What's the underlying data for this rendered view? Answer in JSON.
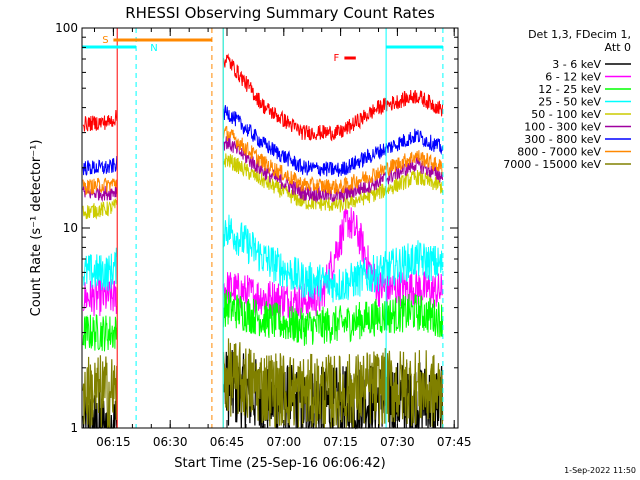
{
  "chart_data": {
    "type": "line",
    "title": "RHESSI Observing Summary Count Rates",
    "xlabel": "Start Time (25-Sep-16 06:06:42)",
    "ylabel": "Count Rate (s⁻¹ detector⁻¹)",
    "yscale": "log",
    "ylim": [
      1,
      100
    ],
    "xlim": [
      "06:06:42",
      "07:46:00"
    ],
    "x_ticks": [
      "06:15",
      "06:30",
      "06:45",
      "07:00",
      "07:15",
      "07:30",
      "07:45"
    ],
    "y_ticks": [
      "1",
      "10",
      "100"
    ],
    "grid": false,
    "legend_position": "right",
    "legend_header": [
      "Det 1,3, FDecim 1,",
      "Att 0"
    ],
    "timestamp": "1-Sep-2022 11:50",
    "data_gap": {
      "from": "06:16",
      "to": "06:44"
    },
    "flags": [
      {
        "label": "S",
        "color": "#ff8800",
        "from": "06:15",
        "to": "06:41"
      },
      {
        "label": "N",
        "color": "#00ffff",
        "from": "06:06:42",
        "to": "06:21"
      },
      {
        "label": "",
        "color": "#00ffff",
        "from": "07:27",
        "to": "07:42"
      },
      {
        "label": "F",
        "color": "#ff0000",
        "from": "07:16",
        "to": "07:19"
      }
    ],
    "night_lines": [
      "06:21",
      "06:41",
      "07:42"
    ],
    "day_lines": [
      "06:44",
      "07:27"
    ],
    "series": [
      {
        "name": "3 - 6 keV",
        "color": "#000000",
        "x": [
          "06:07",
          "06:14",
          "06:16",
          "06:45",
          "06:55",
          "07:05",
          "07:15",
          "07:25",
          "07:35",
          "07:42"
        ],
        "values": [
          1.0,
          1.0,
          1.0,
          1.6,
          1.4,
          1.3,
          1.3,
          1.4,
          1.4,
          1.3
        ]
      },
      {
        "name": "6 - 12 keV",
        "color": "#ff00ff",
        "x": [
          "06:07",
          "06:14",
          "06:16",
          "06:45",
          "06:55",
          "07:05",
          "07:10",
          "07:14",
          "07:17",
          "07:20",
          "07:23",
          "07:25",
          "07:35",
          "07:42"
        ],
        "values": [
          4.5,
          4.5,
          4.5,
          5.0,
          4.5,
          4.3,
          4.5,
          8.0,
          11.0,
          9.0,
          6.0,
          5.0,
          5.0,
          4.8
        ]
      },
      {
        "name": "12 - 25 keV",
        "color": "#00ff00",
        "x": [
          "06:07",
          "06:14",
          "06:16",
          "06:45",
          "06:55",
          "07:05",
          "07:15",
          "07:25",
          "07:35",
          "07:42"
        ],
        "values": [
          3.0,
          3.0,
          3.0,
          4.0,
          3.5,
          3.2,
          3.3,
          3.6,
          3.8,
          3.5
        ]
      },
      {
        "name": "25 - 50 keV",
        "color": "#00ffff",
        "x": [
          "06:07",
          "06:14",
          "06:16",
          "06:45",
          "06:55",
          "07:05",
          "07:15",
          "07:25",
          "07:35",
          "07:42"
        ],
        "values": [
          6.0,
          6.0,
          6.5,
          10.0,
          7.0,
          5.5,
          5.2,
          6.0,
          7.0,
          6.5
        ]
      },
      {
        "name": "50 - 100 keV",
        "color": "#cccc00",
        "x": [
          "06:07",
          "06:14",
          "06:16",
          "06:45",
          "06:55",
          "07:05",
          "07:15",
          "07:25",
          "07:35",
          "07:42"
        ],
        "values": [
          12.0,
          12.5,
          13.0,
          22.0,
          17.0,
          13.5,
          13.0,
          15.0,
          18.0,
          16.0
        ]
      },
      {
        "name": "100 - 300 keV",
        "color": "#a000a0",
        "x": [
          "06:07",
          "06:14",
          "06:16",
          "06:45",
          "06:55",
          "07:05",
          "07:15",
          "07:25",
          "07:35",
          "07:42"
        ],
        "values": [
          15.0,
          15.0,
          15.5,
          27.0,
          19.0,
          15.0,
          14.5,
          17.0,
          21.0,
          18.0
        ]
      },
      {
        "name": "300 - 800 keV",
        "color": "#0000ff",
        "x": [
          "06:07",
          "06:14",
          "06:16",
          "06:45",
          "06:55",
          "07:05",
          "07:15",
          "07:25",
          "07:35",
          "07:42"
        ],
        "values": [
          20.0,
          20.0,
          21.0,
          38.0,
          26.0,
          20.0,
          19.5,
          24.0,
          29.0,
          25.0
        ]
      },
      {
        "name": "800 - 7000 keV",
        "color": "#ff8800",
        "x": [
          "06:07",
          "06:14",
          "06:16",
          "06:45",
          "06:55",
          "07:05",
          "07:15",
          "07:25",
          "07:35",
          "07:42"
        ],
        "values": [
          16.0,
          16.5,
          17.0,
          30.0,
          21.0,
          16.5,
          16.0,
          19.0,
          23.0,
          20.0
        ]
      },
      {
        "name": "7000 - 15000 keV",
        "color": "#808000",
        "x": [
          "06:07",
          "06:14",
          "06:16",
          "06:45",
          "06:55",
          "07:05",
          "07:15",
          "07:25",
          "07:35",
          "07:42"
        ],
        "values": [
          1.5,
          1.5,
          1.5,
          1.8,
          1.6,
          1.5,
          1.5,
          1.6,
          1.6,
          1.5
        ]
      },
      {
        "name": "",
        "color": "#ff0000",
        "x": [
          "06:07",
          "06:14",
          "06:16",
          "06:45",
          "06:55",
          "07:05",
          "07:15",
          "07:25",
          "07:35",
          "07:42"
        ],
        "values": [
          33.0,
          34.0,
          36.0,
          70.0,
          40.0,
          30.0,
          30.0,
          40.0,
          46.0,
          39.0
        ]
      }
    ]
  }
}
